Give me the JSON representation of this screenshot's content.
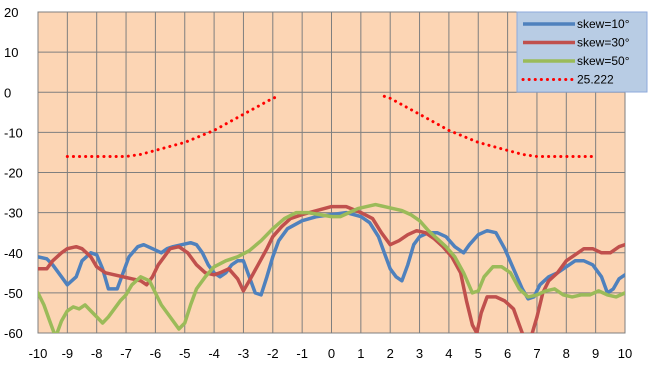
{
  "chart_data": {
    "type": "line",
    "title": "",
    "xlabel": "",
    "ylabel": "",
    "xlim": [
      -10,
      10
    ],
    "ylim": [
      -60,
      20
    ],
    "xticks": [
      -10,
      -9,
      -8,
      -7,
      -6,
      -5,
      -4,
      -3,
      -2,
      -1,
      0,
      1,
      2,
      3,
      4,
      5,
      6,
      7,
      8,
      9,
      10
    ],
    "yticks": [
      20,
      10,
      0,
      -10,
      -20,
      -30,
      -40,
      -50,
      -60
    ],
    "grid": true,
    "plot_background": "#fcd5b4",
    "legend_position": "top-right",
    "series": [
      {
        "name": "skew=10°",
        "color": "#4f81bd",
        "style": "solid",
        "points": [
          [
            -10,
            -41
          ],
          [
            -9.7,
            -41.5
          ],
          [
            -9.5,
            -43
          ],
          [
            -9.2,
            -46
          ],
          [
            -9,
            -48
          ],
          [
            -8.7,
            -46
          ],
          [
            -8.5,
            -42
          ],
          [
            -8.2,
            -40
          ],
          [
            -8,
            -40.5
          ],
          [
            -7.8,
            -44
          ],
          [
            -7.6,
            -49
          ],
          [
            -7.3,
            -49
          ],
          [
            -7.1,
            -45
          ],
          [
            -6.9,
            -41
          ],
          [
            -6.6,
            -38.5
          ],
          [
            -6.4,
            -38
          ],
          [
            -6.1,
            -39
          ],
          [
            -5.8,
            -40
          ],
          [
            -5.6,
            -39
          ],
          [
            -5.4,
            -38.5
          ],
          [
            -5.1,
            -38
          ],
          [
            -4.8,
            -37.5
          ],
          [
            -4.6,
            -38
          ],
          [
            -4.4,
            -40
          ],
          [
            -4.2,
            -43
          ],
          [
            -4,
            -45
          ],
          [
            -3.8,
            -46
          ],
          [
            -3.6,
            -45
          ],
          [
            -3.4,
            -43
          ],
          [
            -3.2,
            -42
          ],
          [
            -3,
            -42
          ],
          [
            -2.8,
            -46
          ],
          [
            -2.6,
            -50
          ],
          [
            -2.4,
            -50.5
          ],
          [
            -2.2,
            -46
          ],
          [
            -2,
            -41
          ],
          [
            -1.8,
            -37
          ],
          [
            -1.5,
            -34
          ],
          [
            -1,
            -32
          ],
          [
            -0.5,
            -31
          ],
          [
            0,
            -30.5
          ],
          [
            0.5,
            -30
          ],
          [
            1,
            -31
          ],
          [
            1.3,
            -32.5
          ],
          [
            1.6,
            -36
          ],
          [
            1.8,
            -40
          ],
          [
            2,
            -44
          ],
          [
            2.2,
            -46
          ],
          [
            2.4,
            -47
          ],
          [
            2.6,
            -43
          ],
          [
            2.8,
            -38
          ],
          [
            3,
            -36
          ],
          [
            3.3,
            -35
          ],
          [
            3.6,
            -35
          ],
          [
            3.9,
            -36
          ],
          [
            4.2,
            -38.5
          ],
          [
            4.5,
            -40
          ],
          [
            4.7,
            -38
          ],
          [
            5,
            -35.5
          ],
          [
            5.3,
            -34.5
          ],
          [
            5.6,
            -35
          ],
          [
            5.9,
            -39
          ],
          [
            6.2,
            -44
          ],
          [
            6.5,
            -49
          ],
          [
            6.7,
            -51.5
          ],
          [
            6.9,
            -51
          ],
          [
            7.1,
            -48
          ],
          [
            7.4,
            -46
          ],
          [
            7.7,
            -45
          ],
          [
            8,
            -43.5
          ],
          [
            8.3,
            -42
          ],
          [
            8.6,
            -42
          ],
          [
            8.9,
            -43
          ],
          [
            9.2,
            -46
          ],
          [
            9.4,
            -50
          ],
          [
            9.6,
            -49
          ],
          [
            9.8,
            -46.5
          ],
          [
            10,
            -45.5
          ]
        ]
      },
      {
        "name": "skew=30°",
        "color": "#c0504d",
        "style": "solid",
        "points": [
          [
            -10,
            -44
          ],
          [
            -9.7,
            -44
          ],
          [
            -9.5,
            -42
          ],
          [
            -9.2,
            -40
          ],
          [
            -9,
            -39
          ],
          [
            -8.7,
            -38.5
          ],
          [
            -8.5,
            -39
          ],
          [
            -8.2,
            -41
          ],
          [
            -8,
            -43.5
          ],
          [
            -7.7,
            -45
          ],
          [
            -7.4,
            -45.5
          ],
          [
            -7.1,
            -46
          ],
          [
            -6.8,
            -46.5
          ],
          [
            -6.5,
            -47
          ],
          [
            -6.3,
            -48
          ],
          [
            -6.1,
            -46
          ],
          [
            -5.9,
            -43
          ],
          [
            -5.7,
            -41
          ],
          [
            -5.5,
            -39
          ],
          [
            -5.2,
            -38.5
          ],
          [
            -4.9,
            -40
          ],
          [
            -4.6,
            -43
          ],
          [
            -4.3,
            -45
          ],
          [
            -4,
            -45.5
          ],
          [
            -3.8,
            -45
          ],
          [
            -3.5,
            -44
          ],
          [
            -3.2,
            -46.5
          ],
          [
            -3,
            -49.5
          ],
          [
            -2.8,
            -47
          ],
          [
            -2.5,
            -43
          ],
          [
            -2.2,
            -39
          ],
          [
            -2,
            -36
          ],
          [
            -1.7,
            -33.5
          ],
          [
            -1.4,
            -31.5
          ],
          [
            -1,
            -30.5
          ],
          [
            -0.5,
            -29.5
          ],
          [
            0,
            -28.5
          ],
          [
            0.5,
            -28.5
          ],
          [
            1,
            -30
          ],
          [
            1.4,
            -31.5
          ],
          [
            1.7,
            -35
          ],
          [
            2,
            -38
          ],
          [
            2.3,
            -37
          ],
          [
            2.6,
            -35.5
          ],
          [
            2.9,
            -34.5
          ],
          [
            3.2,
            -35
          ],
          [
            3.5,
            -36.5
          ],
          [
            3.8,
            -38.5
          ],
          [
            4.1,
            -41
          ],
          [
            4.4,
            -45
          ],
          [
            4.6,
            -52
          ],
          [
            4.8,
            -58
          ],
          [
            4.95,
            -60
          ],
          [
            5.1,
            -55
          ],
          [
            5.3,
            -51
          ],
          [
            5.6,
            -51
          ],
          [
            5.9,
            -52
          ],
          [
            6.2,
            -54
          ],
          [
            6.4,
            -58
          ],
          [
            6.55,
            -61
          ],
          [
            6.8,
            -61
          ],
          [
            7.0,
            -56
          ],
          [
            7.2,
            -50
          ],
          [
            7.4,
            -47
          ],
          [
            7.7,
            -45
          ],
          [
            8,
            -42
          ],
          [
            8.3,
            -40.5
          ],
          [
            8.6,
            -39
          ],
          [
            8.9,
            -39
          ],
          [
            9.2,
            -40
          ],
          [
            9.5,
            -40
          ],
          [
            9.8,
            -38.5
          ],
          [
            10,
            -38
          ]
        ]
      },
      {
        "name": "skew=50°",
        "color": "#9bbb59",
        "style": "solid",
        "points": [
          [
            -10,
            -50
          ],
          [
            -9.8,
            -53
          ],
          [
            -9.6,
            -57
          ],
          [
            -9.4,
            -61
          ],
          [
            -9.2,
            -57
          ],
          [
            -9,
            -54.5
          ],
          [
            -8.8,
            -53.5
          ],
          [
            -8.6,
            -54
          ],
          [
            -8.4,
            -53
          ],
          [
            -8.2,
            -54.5
          ],
          [
            -8,
            -56
          ],
          [
            -7.8,
            -57.5
          ],
          [
            -7.6,
            -56
          ],
          [
            -7.4,
            -54
          ],
          [
            -7.2,
            -52
          ],
          [
            -7,
            -50.5
          ],
          [
            -6.8,
            -48
          ],
          [
            -6.5,
            -46
          ],
          [
            -6.2,
            -47
          ],
          [
            -6,
            -50
          ],
          [
            -5.8,
            -53
          ],
          [
            -5.5,
            -56
          ],
          [
            -5.2,
            -59
          ],
          [
            -5,
            -57.5
          ],
          [
            -4.8,
            -53
          ],
          [
            -4.6,
            -49
          ],
          [
            -4.3,
            -46
          ],
          [
            -4,
            -43.5
          ],
          [
            -3.6,
            -42
          ],
          [
            -3.2,
            -41
          ],
          [
            -2.8,
            -39.5
          ],
          [
            -2.4,
            -37
          ],
          [
            -2,
            -34
          ],
          [
            -1.6,
            -31.5
          ],
          [
            -1.2,
            -30
          ],
          [
            -0.8,
            -30
          ],
          [
            -0.4,
            -30.5
          ],
          [
            0,
            -31
          ],
          [
            0.3,
            -31
          ],
          [
            0.6,
            -30
          ],
          [
            0.9,
            -29
          ],
          [
            1.2,
            -28.5
          ],
          [
            1.5,
            -28
          ],
          [
            1.8,
            -28.5
          ],
          [
            2.1,
            -29
          ],
          [
            2.4,
            -29.5
          ],
          [
            2.7,
            -30.5
          ],
          [
            3,
            -32
          ],
          [
            3.3,
            -34.5
          ],
          [
            3.6,
            -36.5
          ],
          [
            3.9,
            -38.5
          ],
          [
            4.2,
            -41
          ],
          [
            4.5,
            -45
          ],
          [
            4.8,
            -50
          ],
          [
            5,
            -49.5
          ],
          [
            5.2,
            -46
          ],
          [
            5.5,
            -43.5
          ],
          [
            5.8,
            -43.5
          ],
          [
            6.1,
            -45
          ],
          [
            6.4,
            -49
          ],
          [
            6.7,
            -51
          ],
          [
            7,
            -50.5
          ],
          [
            7.3,
            -49.5
          ],
          [
            7.6,
            -49
          ],
          [
            7.9,
            -50.5
          ],
          [
            8.2,
            -51
          ],
          [
            8.5,
            -50.5
          ],
          [
            8.8,
            -50.5
          ],
          [
            9.1,
            -49.5
          ],
          [
            9.4,
            -50.5
          ],
          [
            9.7,
            -51
          ],
          [
            10,
            -50
          ]
        ]
      },
      {
        "name": "25.222",
        "color": "#ff0000",
        "style": "dotted",
        "segments": [
          [
            [
              -9,
              -16
            ],
            [
              -8.5,
              -16
            ],
            [
              -8,
              -16
            ],
            [
              -7.5,
              -16
            ],
            [
              -7,
              -16
            ],
            [
              -6.5,
              -15.5
            ],
            [
              -6,
              -14.5
            ],
            [
              -5.5,
              -13.5
            ],
            [
              -5,
              -12.5
            ],
            [
              -4.5,
              -11
            ],
            [
              -4,
              -9.5
            ],
            [
              -3.5,
              -7.5
            ],
            [
              -3,
              -5.5
            ],
            [
              -2.5,
              -3.5
            ],
            [
              -2,
              -1.5
            ],
            [
              -1.8,
              -1
            ]
          ],
          [
            [
              1.8,
              -1
            ],
            [
              2,
              -1.5
            ],
            [
              2.5,
              -3.5
            ],
            [
              3,
              -5.5
            ],
            [
              3.5,
              -7.5
            ],
            [
              4,
              -9.5
            ],
            [
              4.5,
              -11
            ],
            [
              5,
              -12.5
            ],
            [
              5.5,
              -13.5
            ],
            [
              6,
              -14.5
            ],
            [
              6.5,
              -15.5
            ],
            [
              7,
              -16
            ],
            [
              7.5,
              -16
            ],
            [
              8,
              -16
            ],
            [
              8.5,
              -16
            ],
            [
              9,
              -16
            ]
          ]
        ]
      }
    ]
  }
}
